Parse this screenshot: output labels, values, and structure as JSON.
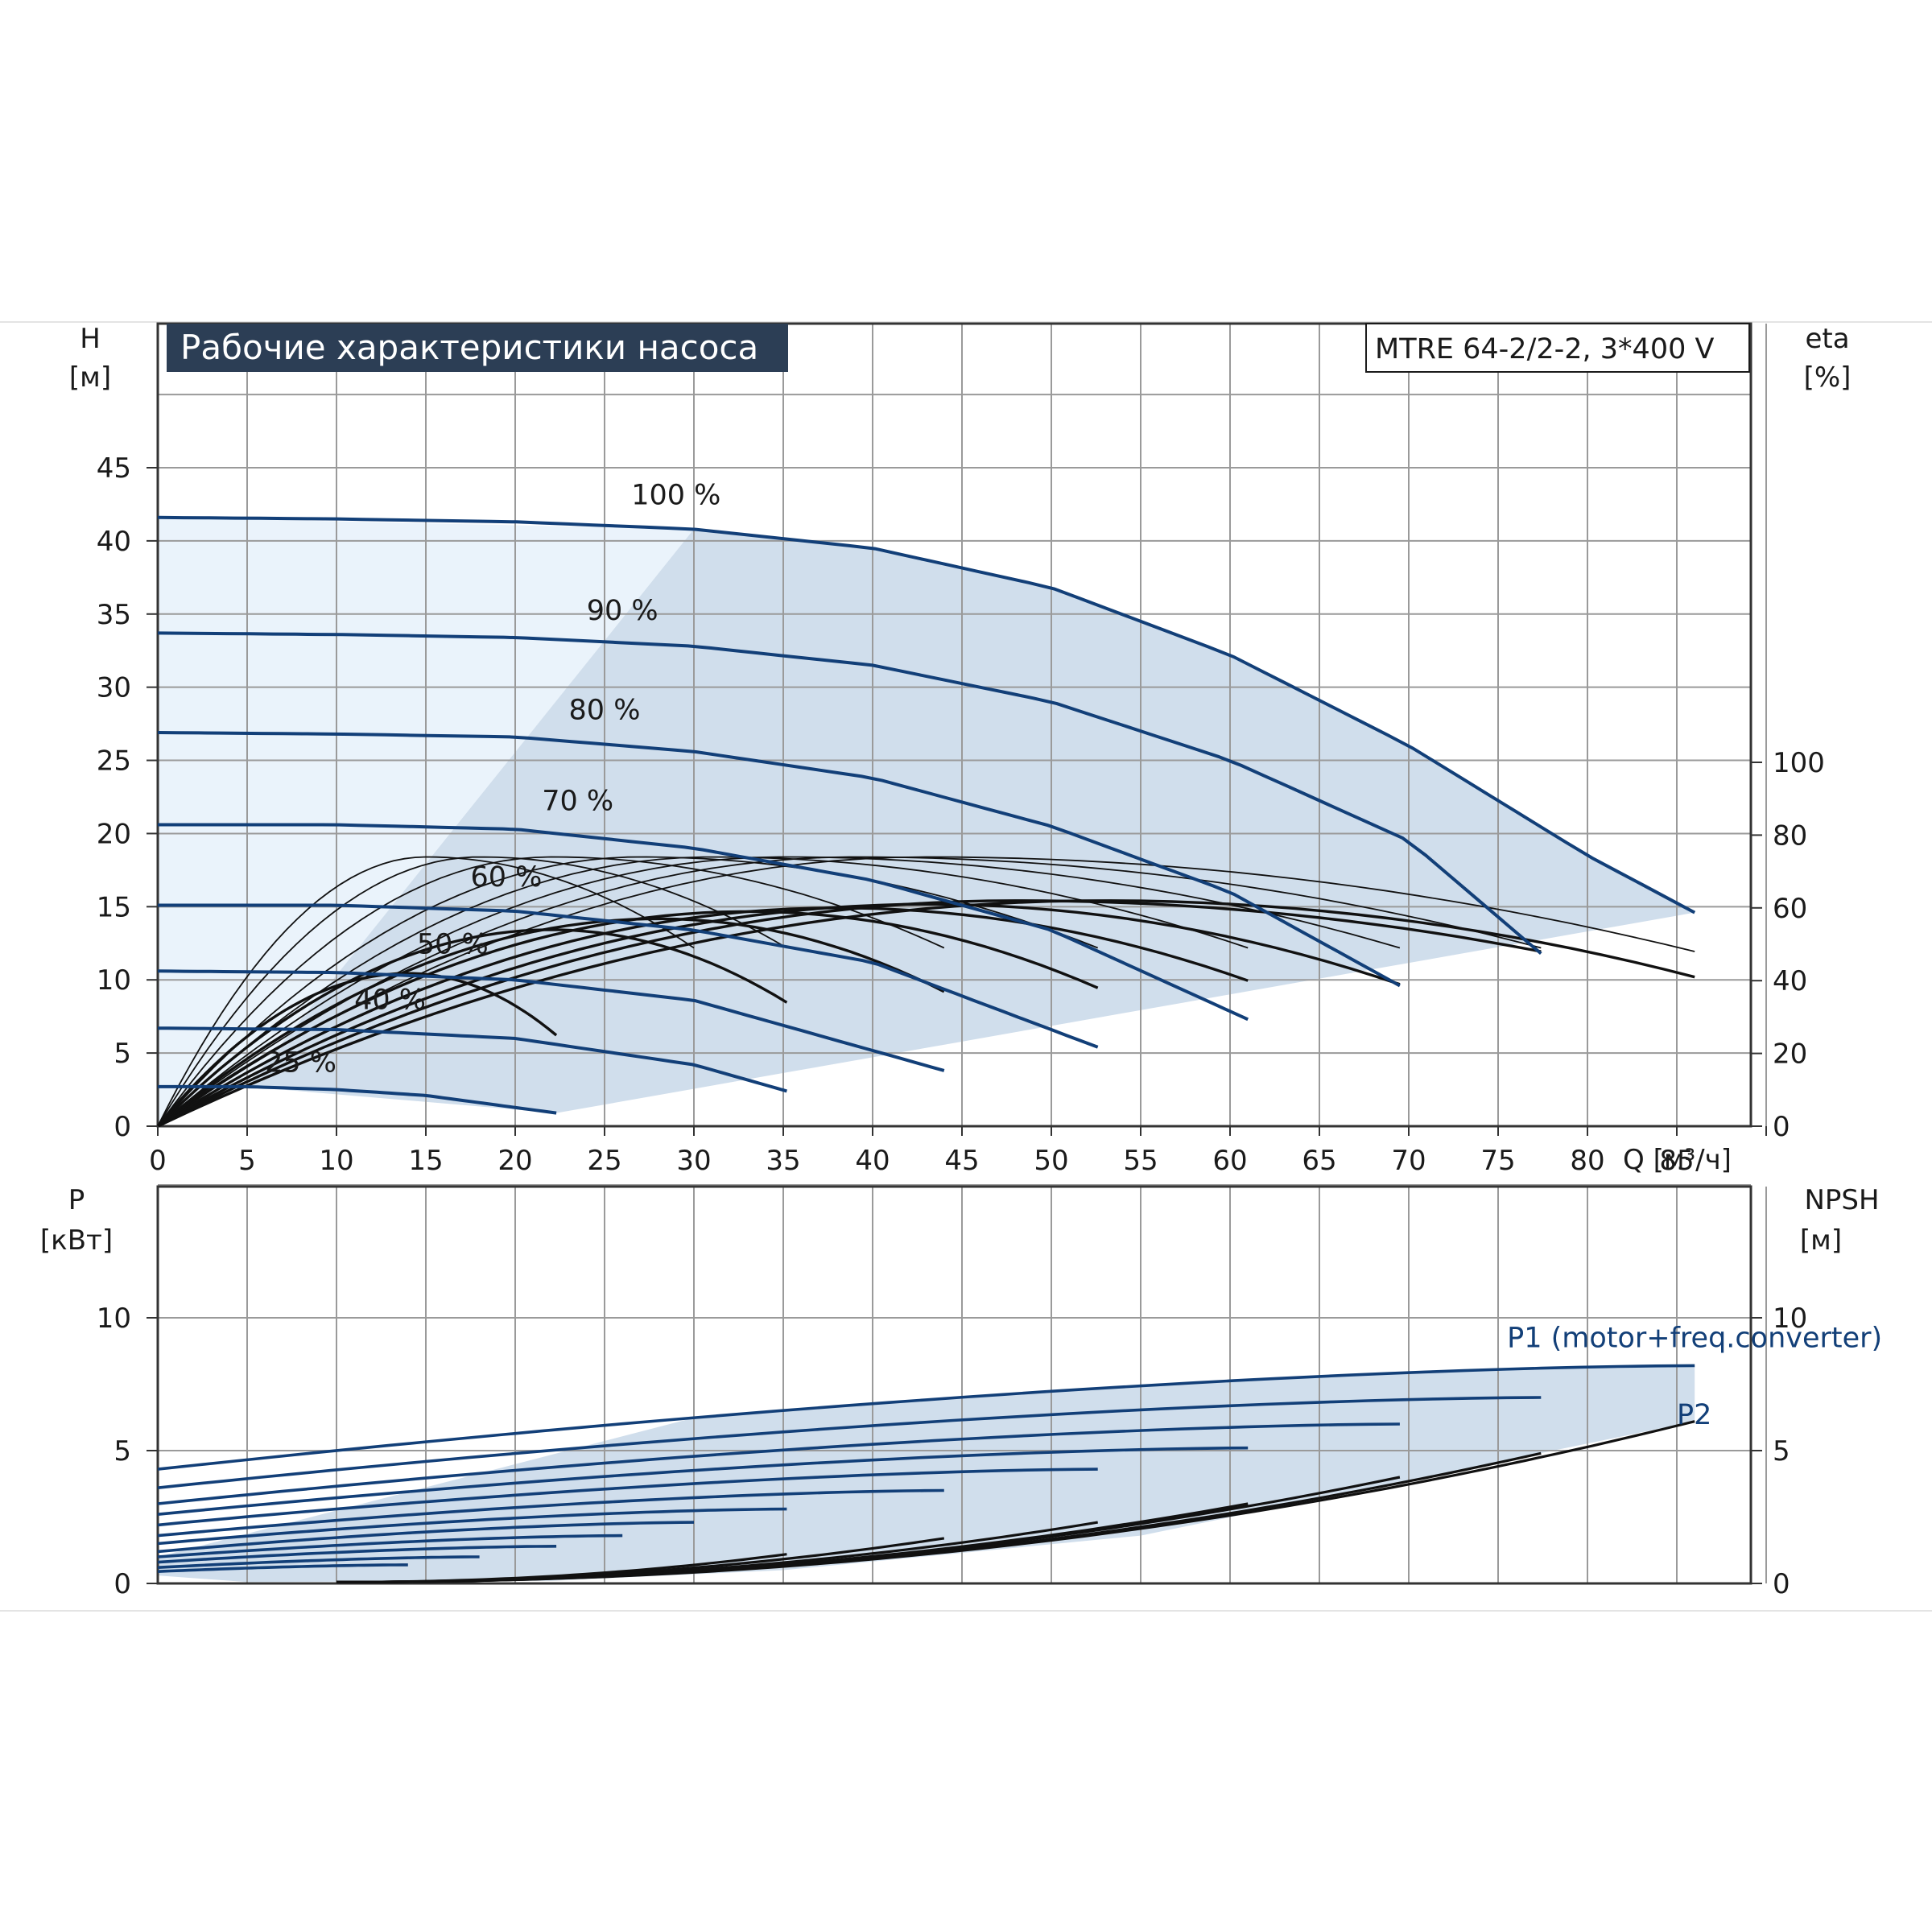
{
  "title": "Рабочие характеристики насоса",
  "model": "MTRE 64-2/2-2, 3*400 V",
  "colors": {
    "curve": "#123f78",
    "efficiency": "#111111",
    "area_light": "#eaf3fb",
    "area_dark": "#d0deec",
    "title_bg": "#2c3e55",
    "grid": "#9a9a9a"
  },
  "chart_data": [
    {
      "type": "line",
      "name": "head_efficiency",
      "title": "Рабочие характеристики насоса",
      "ylabel_left": "H",
      "ylabel_left_unit": "[м]",
      "ylabel_right": "eta",
      "ylabel_right_unit": "[%]",
      "xlabel": "Q [м³/ч]",
      "xlim": [
        0,
        95
      ],
      "ylim": [
        0,
        50
      ],
      "eta_lim": [
        0,
        100
      ],
      "x_ticks": [
        "0",
        "5",
        "10",
        "15",
        "20",
        "25",
        "30",
        "35",
        "40",
        "45",
        "50",
        "55",
        "60",
        "65",
        "70",
        "75",
        "80",
        "85"
      ],
      "y_ticks": [
        "0",
        "5",
        "10",
        "15",
        "20",
        "25",
        "30",
        "35",
        "40",
        "45"
      ],
      "eta_ticks": [
        "0",
        "20",
        "40",
        "60",
        "80",
        "100"
      ],
      "grid": true,
      "speed_labels": [
        {
          "text": "100 %",
          "q": 29,
          "h": 42.5
        },
        {
          "text": "90 %",
          "q": 26,
          "h": 34.6
        },
        {
          "text": "80 %",
          "q": 25,
          "h": 27.8
        },
        {
          "text": "70 %",
          "q": 23.5,
          "h": 21.6
        },
        {
          "text": "60 %",
          "q": 19.5,
          "h": 16.4
        },
        {
          "text": "50 %",
          "q": 16.5,
          "h": 11.8
        },
        {
          "text": "40 %",
          "q": 13,
          "h": 8.0
        },
        {
          "text": "25 %",
          "q": 8,
          "h": 3.7
        }
      ],
      "head_curves": [
        {
          "speed": "100 %",
          "q_max": 86,
          "points": [
            [
              0,
              41.6
            ],
            [
              10,
              41.5
            ],
            [
              20,
              41.3
            ],
            [
              30,
              40.8
            ],
            [
              40,
              39.5
            ],
            [
              50,
              36.8
            ],
            [
              60,
              32.2
            ],
            [
              70,
              26.0
            ],
            [
              80,
              18.5
            ],
            [
              86,
              14.6
            ]
          ]
        },
        {
          "speed": "90 %",
          "q_max": 77.4,
          "points": [
            [
              0,
              33.7
            ],
            [
              10,
              33.6
            ],
            [
              20,
              33.4
            ],
            [
              30,
              32.8
            ],
            [
              40,
              31.5
            ],
            [
              50,
              29.0
            ],
            [
              60,
              25.0
            ],
            [
              70,
              19.5
            ],
            [
              77.4,
              11.8
            ]
          ]
        },
        {
          "speed": "80 %",
          "q_max": 69.5,
          "points": [
            [
              0,
              26.9
            ],
            [
              10,
              26.8
            ],
            [
              20,
              26.6
            ],
            [
              30,
              25.6
            ],
            [
              40,
              23.8
            ],
            [
              50,
              20.5
            ],
            [
              60,
              16.0
            ],
            [
              69.5,
              9.6
            ]
          ]
        },
        {
          "speed": "70 %",
          "q_max": 61,
          "points": [
            [
              0,
              20.6
            ],
            [
              10,
              20.6
            ],
            [
              20,
              20.3
            ],
            [
              30,
              19.0
            ],
            [
              40,
              16.8
            ],
            [
              50,
              13.4
            ],
            [
              61,
              7.3
            ]
          ]
        },
        {
          "speed": "60 %",
          "q_max": 52.6,
          "points": [
            [
              0,
              15.1
            ],
            [
              10,
              15.1
            ],
            [
              20,
              14.7
            ],
            [
              30,
              13.4
            ],
            [
              40,
              11.2
            ],
            [
              52.6,
              5.4
            ]
          ]
        },
        {
          "speed": "50 %",
          "q_max": 44,
          "points": [
            [
              0,
              10.6
            ],
            [
              10,
              10.5
            ],
            [
              20,
              10.0
            ],
            [
              30,
              8.6
            ],
            [
              44,
              3.8
            ]
          ]
        },
        {
          "speed": "40 %",
          "q_max": 35.2,
          "points": [
            [
              0,
              6.7
            ],
            [
              10,
              6.6
            ],
            [
              20,
              6.0
            ],
            [
              30,
              4.2
            ],
            [
              35.2,
              2.4
            ]
          ]
        },
        {
          "speed": "25 %",
          "q_max": 22.3,
          "points": [
            [
              0,
              2.7
            ],
            [
              5,
              2.7
            ],
            [
              10,
              2.5
            ],
            [
              15,
              2.1
            ],
            [
              22.3,
              0.9
            ]
          ]
        }
      ],
      "efficiency_curves": [
        {
          "q_end": 86,
          "q_peak": 53,
          "eta_peak": 62,
          "eta_end": 41
        },
        {
          "q_end": 77.4,
          "q_peak": 48,
          "eta_peak": 62,
          "eta_end": 48
        },
        {
          "q_end": 69.5,
          "q_peak": 43,
          "eta_peak": 61,
          "eta_end": 39
        },
        {
          "q_end": 61,
          "q_peak": 38,
          "eta_peak": 60,
          "eta_end": 40
        },
        {
          "q_end": 52.6,
          "q_peak": 33,
          "eta_peak": 59,
          "eta_end": 38
        },
        {
          "q_end": 44,
          "q_peak": 28,
          "eta_peak": 57,
          "eta_end": 37
        },
        {
          "q_end": 35.2,
          "q_peak": 22,
          "eta_peak": 54,
          "eta_end": 34
        },
        {
          "q_end": 22.3,
          "q_peak": 14,
          "eta_peak": 42,
          "eta_end": 25
        },
        {
          "q_end": 86,
          "q_peak": 43,
          "eta_peak": 74,
          "eta_end": 48
        },
        {
          "q_end": 77.4,
          "q_peak": 39,
          "eta_peak": 74,
          "eta_end": 49
        },
        {
          "q_end": 69.5,
          "q_peak": 35,
          "eta_peak": 74,
          "eta_end": 49
        },
        {
          "q_end": 61,
          "q_peak": 31,
          "eta_peak": 74,
          "eta_end": 49
        },
        {
          "q_end": 52.6,
          "q_peak": 27,
          "eta_peak": 74,
          "eta_end": 49
        },
        {
          "q_end": 44,
          "q_peak": 22,
          "eta_peak": 74,
          "eta_end": 49
        },
        {
          "q_end": 35.2,
          "q_peak": 18,
          "eta_peak": 74,
          "eta_end": 49
        },
        {
          "q_end": 30,
          "q_peak": 15,
          "eta_peak": 74,
          "eta_end": 49
        }
      ]
    },
    {
      "type": "line",
      "name": "power_npsh",
      "ylabel_left": "P",
      "ylabel_left_unit": "[кВт]",
      "ylabel_right": "NPSH",
      "ylabel_right_unit": "[м]",
      "xlim": [
        0,
        95
      ],
      "ylim": [
        0,
        15
      ],
      "y_ticks": [
        "0",
        "5",
        "10"
      ],
      "npsh_ticks": [
        "0",
        "5",
        "10"
      ],
      "grid": true,
      "labels": [
        {
          "text": "P1 (motor+freq.converter)",
          "q": 75.5,
          "p": 8.9
        },
        {
          "text": "P2",
          "q": 85,
          "p": 6.0
        }
      ],
      "p1_curves": [
        {
          "q_end": 86,
          "p0": 4.3,
          "p_end": 8.2
        },
        {
          "q_end": 77.4,
          "p0": 3.6,
          "p_end": 7.0
        },
        {
          "q_end": 69.5,
          "p0": 3.0,
          "p_end": 6.0
        },
        {
          "q_end": 61,
          "p0": 2.6,
          "p_end": 5.1
        },
        {
          "q_end": 52.6,
          "p0": 2.2,
          "p_end": 4.3
        },
        {
          "q_end": 44,
          "p0": 1.8,
          "p_end": 3.5
        },
        {
          "q_end": 35.2,
          "p0": 1.5,
          "p_end": 2.8
        },
        {
          "q_end": 30,
          "p0": 1.2,
          "p_end": 2.3
        },
        {
          "q_end": 26,
          "p0": 1.0,
          "p_end": 1.8
        },
        {
          "q_end": 22.3,
          "p0": 0.8,
          "p_end": 1.4
        },
        {
          "q_end": 18,
          "p0": 0.6,
          "p_end": 1.0
        },
        {
          "q_end": 14,
          "p0": 0.45,
          "p_end": 0.7
        }
      ],
      "p2_curves": [
        {
          "q_end": 86,
          "p_end": 6.1
        },
        {
          "q_end": 77.4,
          "p_end": 4.9
        },
        {
          "q_end": 69.5,
          "p_end": 4.0
        },
        {
          "q_end": 61,
          "p_end": 3.0
        },
        {
          "q_end": 52.6,
          "p_end": 2.3
        },
        {
          "q_end": 44,
          "p_end": 1.7
        },
        {
          "q_end": 35.2,
          "p_end": 1.1
        }
      ]
    }
  ]
}
